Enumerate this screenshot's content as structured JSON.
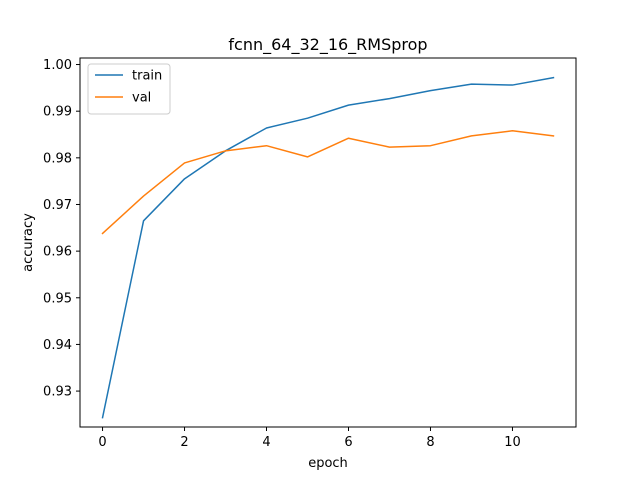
{
  "chart_data": {
    "type": "line",
    "title": "fcnn_64_32_16_RMSprop",
    "xlabel": "epoch",
    "ylabel": "accuracy",
    "x": [
      0,
      1,
      2,
      3,
      4,
      5,
      6,
      7,
      8,
      9,
      10,
      11
    ],
    "xlim": [
      -0.55,
      11.55
    ],
    "ylim": [
      0.9223,
      1.0014
    ],
    "xticks": [
      0,
      2,
      4,
      6,
      8,
      10
    ],
    "yticks": [
      0.93,
      0.94,
      0.95,
      0.96,
      0.97,
      0.98,
      0.99,
      1.0
    ],
    "ytick_labels": [
      "0.93",
      "0.94",
      "0.95",
      "0.96",
      "0.97",
      "0.98",
      "0.99",
      "1.00"
    ],
    "grid": false,
    "legend_position": "top-left",
    "series": [
      {
        "name": "train",
        "color": "#1f77b4",
        "values": [
          0.9243,
          0.9665,
          0.9755,
          0.9815,
          0.9864,
          0.9885,
          0.9913,
          0.9927,
          0.9944,
          0.9958,
          0.9956,
          0.9972
        ]
      },
      {
        "name": "val",
        "color": "#ff7f0e",
        "values": [
          0.9638,
          0.9718,
          0.9789,
          0.9815,
          0.9826,
          0.9802,
          0.9842,
          0.9823,
          0.9826,
          0.9847,
          0.9858,
          0.9847
        ]
      }
    ]
  }
}
